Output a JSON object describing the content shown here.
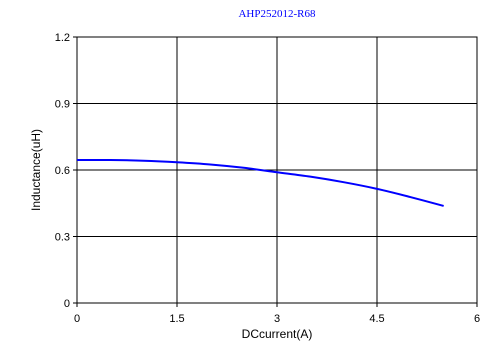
{
  "chart_data": {
    "type": "line",
    "title": "AHP252012-R68",
    "xlabel": "DCcurrent(A)",
    "ylabel": "Inductance(uH)",
    "xlim": [
      0,
      6
    ],
    "ylim": [
      0,
      1.2
    ],
    "x_ticks": [
      0,
      1.5,
      3,
      4.5,
      6
    ],
    "y_ticks": [
      0,
      0.3,
      0.6,
      0.9,
      1.2
    ],
    "x_tick_labels": [
      "0",
      "1.5",
      "3",
      "4.5",
      "6"
    ],
    "y_tick_labels": [
      "0",
      "0.3",
      "0.6",
      "0.9",
      "1.2"
    ],
    "grid": true,
    "colors": {
      "title": "#0000ff",
      "series": "#0000ff",
      "grid": "#000000",
      "axes": "#000000"
    },
    "series": [
      {
        "x": [
          0,
          0.5,
          1.0,
          1.5,
          2.0,
          2.5,
          3.0,
          3.5,
          4.0,
          4.5,
          5.0,
          5.5
        ],
        "values": [
          0.645,
          0.645,
          0.642,
          0.635,
          0.625,
          0.61,
          0.59,
          0.57,
          0.545,
          0.515,
          0.478,
          0.438
        ]
      }
    ]
  }
}
